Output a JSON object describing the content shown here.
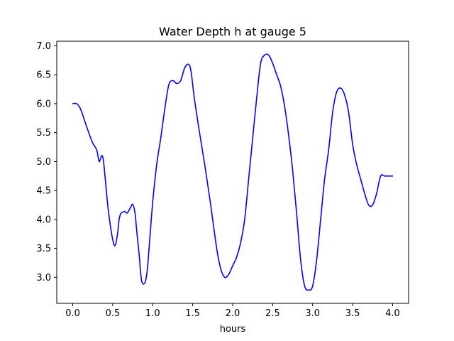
{
  "chart_data": {
    "type": "line",
    "title": "Water Depth h at gauge 5",
    "xlabel": "hours",
    "ylabel": "",
    "xlim": [
      -0.2,
      4.2
    ],
    "ylim": [
      2.55,
      7.08
    ],
    "xticks": [
      0.0,
      0.5,
      1.0,
      1.5,
      2.0,
      2.5,
      3.0,
      3.5,
      4.0
    ],
    "xtick_labels": [
      "0.0",
      "0.5",
      "1.0",
      "1.5",
      "2.0",
      "2.5",
      "3.0",
      "3.5",
      "4.0"
    ],
    "yticks": [
      3.0,
      3.5,
      4.0,
      4.5,
      5.0,
      5.5,
      6.0,
      6.5,
      7.0
    ],
    "ytick_labels": [
      "3.0",
      "3.5",
      "4.0",
      "4.5",
      "5.0",
      "5.5",
      "6.0",
      "6.5",
      "7.0"
    ],
    "grid": false,
    "series": [
      {
        "color": "#0000ff",
        "x": [
          0.0,
          0.05,
          0.1,
          0.15,
          0.2,
          0.25,
          0.3,
          0.33,
          0.36,
          0.38,
          0.4,
          0.42,
          0.45,
          0.5,
          0.53,
          0.56,
          0.58,
          0.6,
          0.62,
          0.65,
          0.68,
          0.72,
          0.75,
          0.78,
          0.8,
          0.83,
          0.86,
          0.9,
          0.93,
          0.96,
          1.0,
          1.05,
          1.1,
          1.15,
          1.2,
          1.25,
          1.3,
          1.35,
          1.4,
          1.45,
          1.48,
          1.52,
          1.58,
          1.65,
          1.72,
          1.8,
          1.85,
          1.9,
          1.95,
          2.0,
          2.05,
          2.1,
          2.15,
          2.2,
          2.25,
          2.3,
          2.35,
          2.4,
          2.45,
          2.5,
          2.55,
          2.6,
          2.65,
          2.7,
          2.75,
          2.8,
          2.85,
          2.9,
          2.95,
          3.0,
          3.05,
          3.1,
          3.15,
          3.2,
          3.25,
          3.3,
          3.35,
          3.4,
          3.45,
          3.5,
          3.55,
          3.6,
          3.65,
          3.7,
          3.75,
          3.8,
          3.85,
          3.9,
          3.95,
          4.0
        ],
        "y": [
          6.0,
          6.0,
          5.9,
          5.7,
          5.5,
          5.32,
          5.2,
          5.0,
          5.1,
          5.05,
          4.8,
          4.5,
          4.1,
          3.65,
          3.55,
          3.75,
          4.0,
          4.1,
          4.12,
          4.14,
          4.11,
          4.2,
          4.26,
          4.1,
          3.8,
          3.4,
          2.95,
          2.9,
          3.1,
          3.6,
          4.3,
          4.95,
          5.4,
          5.9,
          6.32,
          6.4,
          6.35,
          6.4,
          6.62,
          6.68,
          6.55,
          6.1,
          5.55,
          4.95,
          4.3,
          3.5,
          3.15,
          3.0,
          3.05,
          3.2,
          3.35,
          3.6,
          4.0,
          4.7,
          5.4,
          6.1,
          6.7,
          6.84,
          6.84,
          6.7,
          6.5,
          6.3,
          5.95,
          5.45,
          4.85,
          4.1,
          3.3,
          2.85,
          2.78,
          2.85,
          3.3,
          4.0,
          4.7,
          5.2,
          5.85,
          6.2,
          6.27,
          6.15,
          5.85,
          5.3,
          4.95,
          4.7,
          4.45,
          4.25,
          4.25,
          4.45,
          4.75,
          4.75,
          4.75,
          4.75
        ]
      }
    ]
  }
}
